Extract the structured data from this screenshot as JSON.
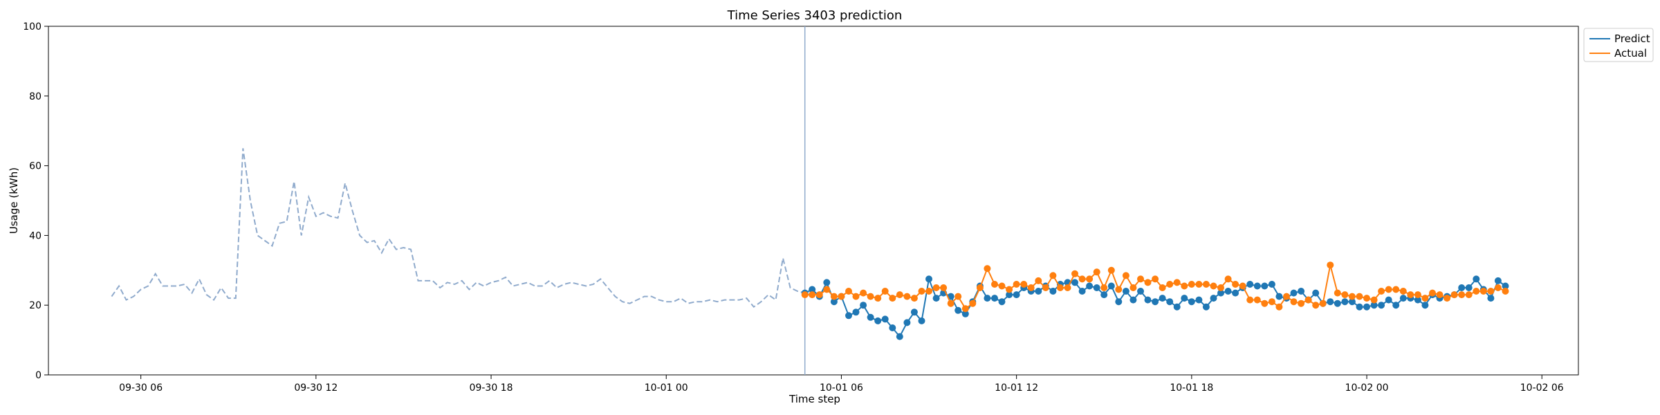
{
  "chart_data": {
    "type": "line",
    "title": "Time Series 3403 prediction",
    "xlabel": "Time step",
    "ylabel": "Usage (kWh)",
    "ylim": [
      0,
      100
    ],
    "xlim": [
      "2023-09-30 02:50",
      "2023-10-02 07:15"
    ],
    "yticks": [
      0,
      20,
      40,
      60,
      80,
      100
    ],
    "xticks": [
      {
        "value": "2023-09-30 06:00",
        "label": "09-30 06"
      },
      {
        "value": "2023-09-30 12:00",
        "label": "09-30 12"
      },
      {
        "value": "2023-09-30 18:00",
        "label": "09-30 18"
      },
      {
        "value": "2023-10-01 00:00",
        "label": "10-01 00"
      },
      {
        "value": "2023-10-01 06:00",
        "label": "10-01 06"
      },
      {
        "value": "2023-10-01 12:00",
        "label": "10-01 12"
      },
      {
        "value": "2023-10-01 18:00",
        "label": "10-01 18"
      },
      {
        "value": "2023-10-02 00:00",
        "label": "10-02 00"
      },
      {
        "value": "2023-10-02 06:00",
        "label": "10-02 06"
      }
    ],
    "grid": false,
    "legend_position": "upper-right-outside",
    "forecast_start": "2023-10-01 04:45",
    "history": {
      "start": "2023-09-30 05:00",
      "interval_minutes": 15,
      "color": "#8faacc",
      "style": "dashed",
      "values": [
        22.5,
        25.5,
        21.5,
        22.5,
        24.5,
        25.5,
        29,
        25.5,
        25.5,
        25.5,
        26,
        23.5,
        27.5,
        23,
        21.5,
        25,
        22,
        22,
        65,
        50,
        40,
        38.5,
        37,
        43.5,
        44,
        55.5,
        40,
        51,
        45.5,
        46.5,
        45.5,
        45,
        55,
        47,
        40,
        38,
        38.5,
        35,
        39,
        36,
        36.5,
        36,
        27,
        27,
        27,
        25,
        26.5,
        26,
        27,
        24.5,
        26.5,
        25.5,
        26.5,
        27,
        28,
        25.5,
        26,
        26.5,
        25.5,
        25.5,
        27,
        25,
        26,
        26.5,
        26,
        25.5,
        26,
        27.5,
        25,
        22.5,
        21,
        20.5,
        21.5,
        22.5,
        22.5,
        21.5,
        21,
        21,
        22,
        20.5,
        21,
        21,
        21.5,
        21,
        21.5,
        21.5,
        21.5,
        22,
        19.5,
        21,
        23,
        21.5,
        33.5,
        25,
        24,
        23.5,
        23.5
      ]
    },
    "series": [
      {
        "name": "Predict",
        "start": "2023-10-01 04:45",
        "interval_minutes": 15,
        "color": "#1f77b4",
        "values": [
          23.5,
          24.5,
          22.5,
          26.5,
          21,
          22.5,
          17,
          18,
          20,
          16.5,
          15.5,
          16,
          13.5,
          11,
          15,
          18,
          15.5,
          27.5,
          22,
          23.5,
          22.5,
          18.5,
          17.5,
          21,
          25.5,
          22,
          22,
          21,
          23,
          23,
          25,
          24,
          24,
          25.5,
          24,
          26,
          26.5,
          26.5,
          24,
          25.5,
          25,
          23,
          25.5,
          21,
          24,
          21.5,
          24,
          21.5,
          21,
          22,
          21,
          19.5,
          22,
          21,
          21.5,
          19.5,
          22,
          23.5,
          24,
          23.5,
          25,
          26,
          25.5,
          25.5,
          26,
          22.5,
          22,
          23.5,
          24,
          21.5,
          23.5,
          20.5,
          21,
          20.5,
          21,
          21,
          19.5,
          19.5,
          20,
          20,
          21.5,
          20,
          22,
          22,
          21.5,
          20,
          23,
          22,
          22.5,
          23,
          25,
          25,
          27.5,
          24.5,
          22,
          27,
          25.5
        ]
      },
      {
        "name": "Actual",
        "start": "2023-10-01 04:45",
        "interval_minutes": 15,
        "color": "#ff7f0e",
        "values": [
          23,
          23,
          23,
          24.5,
          22.5,
          22.5,
          24,
          22.5,
          23.5,
          22.5,
          22,
          24,
          22,
          23,
          22.5,
          22,
          24,
          24,
          25,
          25,
          20.5,
          22.5,
          19,
          20.5,
          25,
          30.5,
          26,
          25.5,
          24.5,
          26,
          26,
          25,
          27,
          25,
          28.5,
          25,
          25,
          29,
          27.5,
          27.5,
          29.5,
          25,
          30,
          24.5,
          28.5,
          25,
          27.5,
          26.5,
          27.5,
          25,
          26,
          26.5,
          25.5,
          26,
          26,
          26,
          25.5,
          25,
          27.5,
          26,
          25.5,
          21.5,
          21.5,
          20.5,
          21,
          19.5,
          22.5,
          21,
          20.5,
          21.5,
          20,
          20.5,
          31.5,
          23.5,
          23,
          22.5,
          22.5,
          22,
          21.5,
          24,
          24.5,
          24.5,
          24,
          23,
          23,
          22,
          23.5,
          23,
          22,
          23,
          23,
          23,
          24,
          24,
          24,
          25,
          24
        ]
      }
    ]
  }
}
